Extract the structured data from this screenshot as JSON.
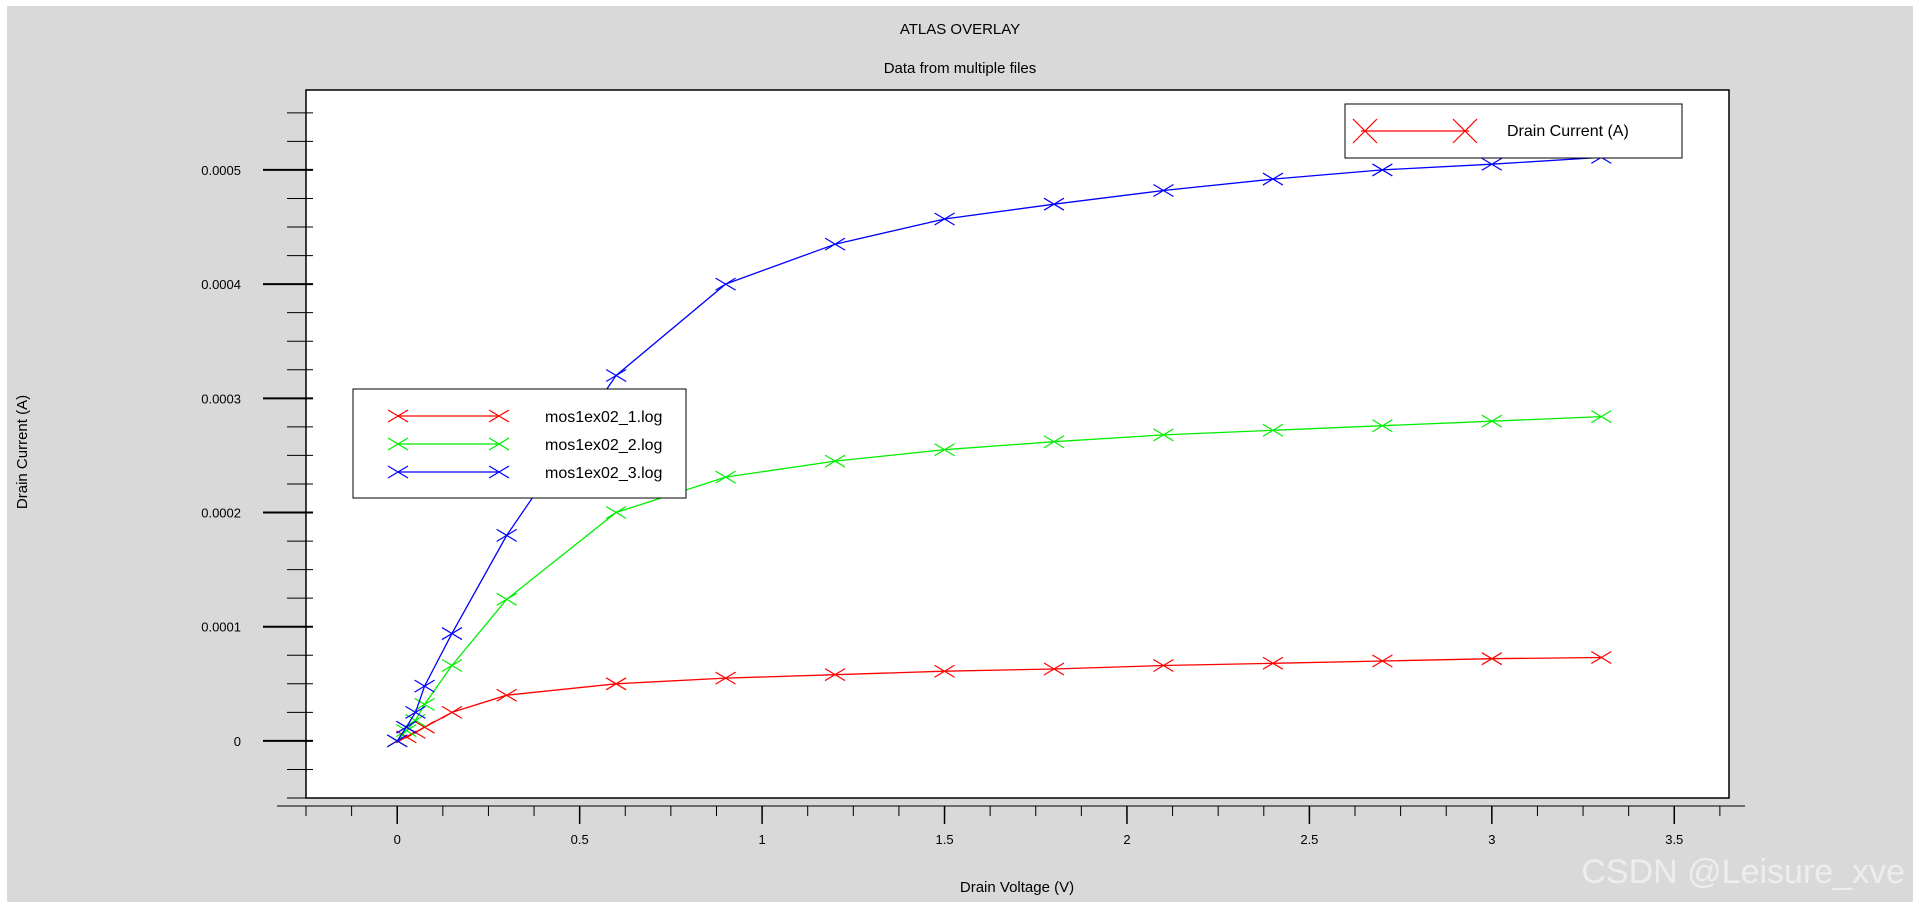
{
  "chart_data": {
    "type": "line",
    "title": "ATLAS OVERLAY",
    "subtitle": "Data from multiple files",
    "xlabel": "Drain Voltage (V)",
    "ylabel": "Drain Current (A)",
    "xlim": [
      -0.25,
      3.65
    ],
    "ylim": [
      -5e-05,
      0.00057
    ],
    "x_ticks": [
      0,
      0.5,
      1,
      1.5,
      2,
      2.5,
      3,
      3.5
    ],
    "x_tick_labels": [
      "0",
      "0.5",
      "1",
      "1.5",
      "2",
      "2.5",
      "3",
      "3.5"
    ],
    "y_ticks": [
      0,
      0.0001,
      0.0002,
      0.0003,
      0.0004,
      0.0005
    ],
    "y_tick_labels": [
      "0",
      "0.0001",
      "0.0002",
      "0.0003",
      "0.0004",
      "0.0005"
    ],
    "grid": false,
    "marker": "x",
    "x": [
      0,
      0.025,
      0.05,
      0.075,
      0.15,
      0.3,
      0.6,
      0.9,
      1.2,
      1.5,
      1.8,
      2.1,
      2.4,
      2.7,
      3.0,
      3.3
    ],
    "series": [
      {
        "name": "mos1ex02_1.log",
        "color": "#ff0000",
        "values": [
          0,
          3.5e-06,
          7.5e-06,
          1.2e-05,
          2.5e-05,
          4e-05,
          5e-05,
          5.5e-05,
          5.8e-05,
          6.1e-05,
          6.3e-05,
          6.6e-05,
          6.8e-05,
          7e-05,
          7.2e-05,
          7.3e-05
        ]
      },
      {
        "name": "mos1ex02_2.log",
        "color": "#00ee00",
        "values": [
          0,
          9e-06,
          1.8e-05,
          3.2e-05,
          6.6e-05,
          0.000124,
          0.0002,
          0.000231,
          0.000245,
          0.000255,
          0.000262,
          0.000268,
          0.000272,
          0.000276,
          0.00028,
          0.000284
        ]
      },
      {
        "name": "mos1ex02_3.log",
        "color": "#0000ff",
        "values": [
          0,
          1.2e-05,
          2.5e-05,
          4.8e-05,
          9.4e-05,
          0.00018,
          0.00032,
          0.0004,
          0.000435,
          0.000457,
          0.00047,
          0.000482,
          0.000492,
          0.0005,
          0.000505,
          0.000511
        ]
      }
    ],
    "legend_files": {
      "position": "middle-left",
      "entries": [
        "mos1ex02_1.log",
        "mos1ex02_2.log",
        "mos1ex02_3.log"
      ]
    },
    "legend_quantity": {
      "position": "top-right",
      "label": "Drain Current (A)",
      "color": "#ff0000"
    }
  },
  "watermark": "CSDN @Leisure_xve"
}
